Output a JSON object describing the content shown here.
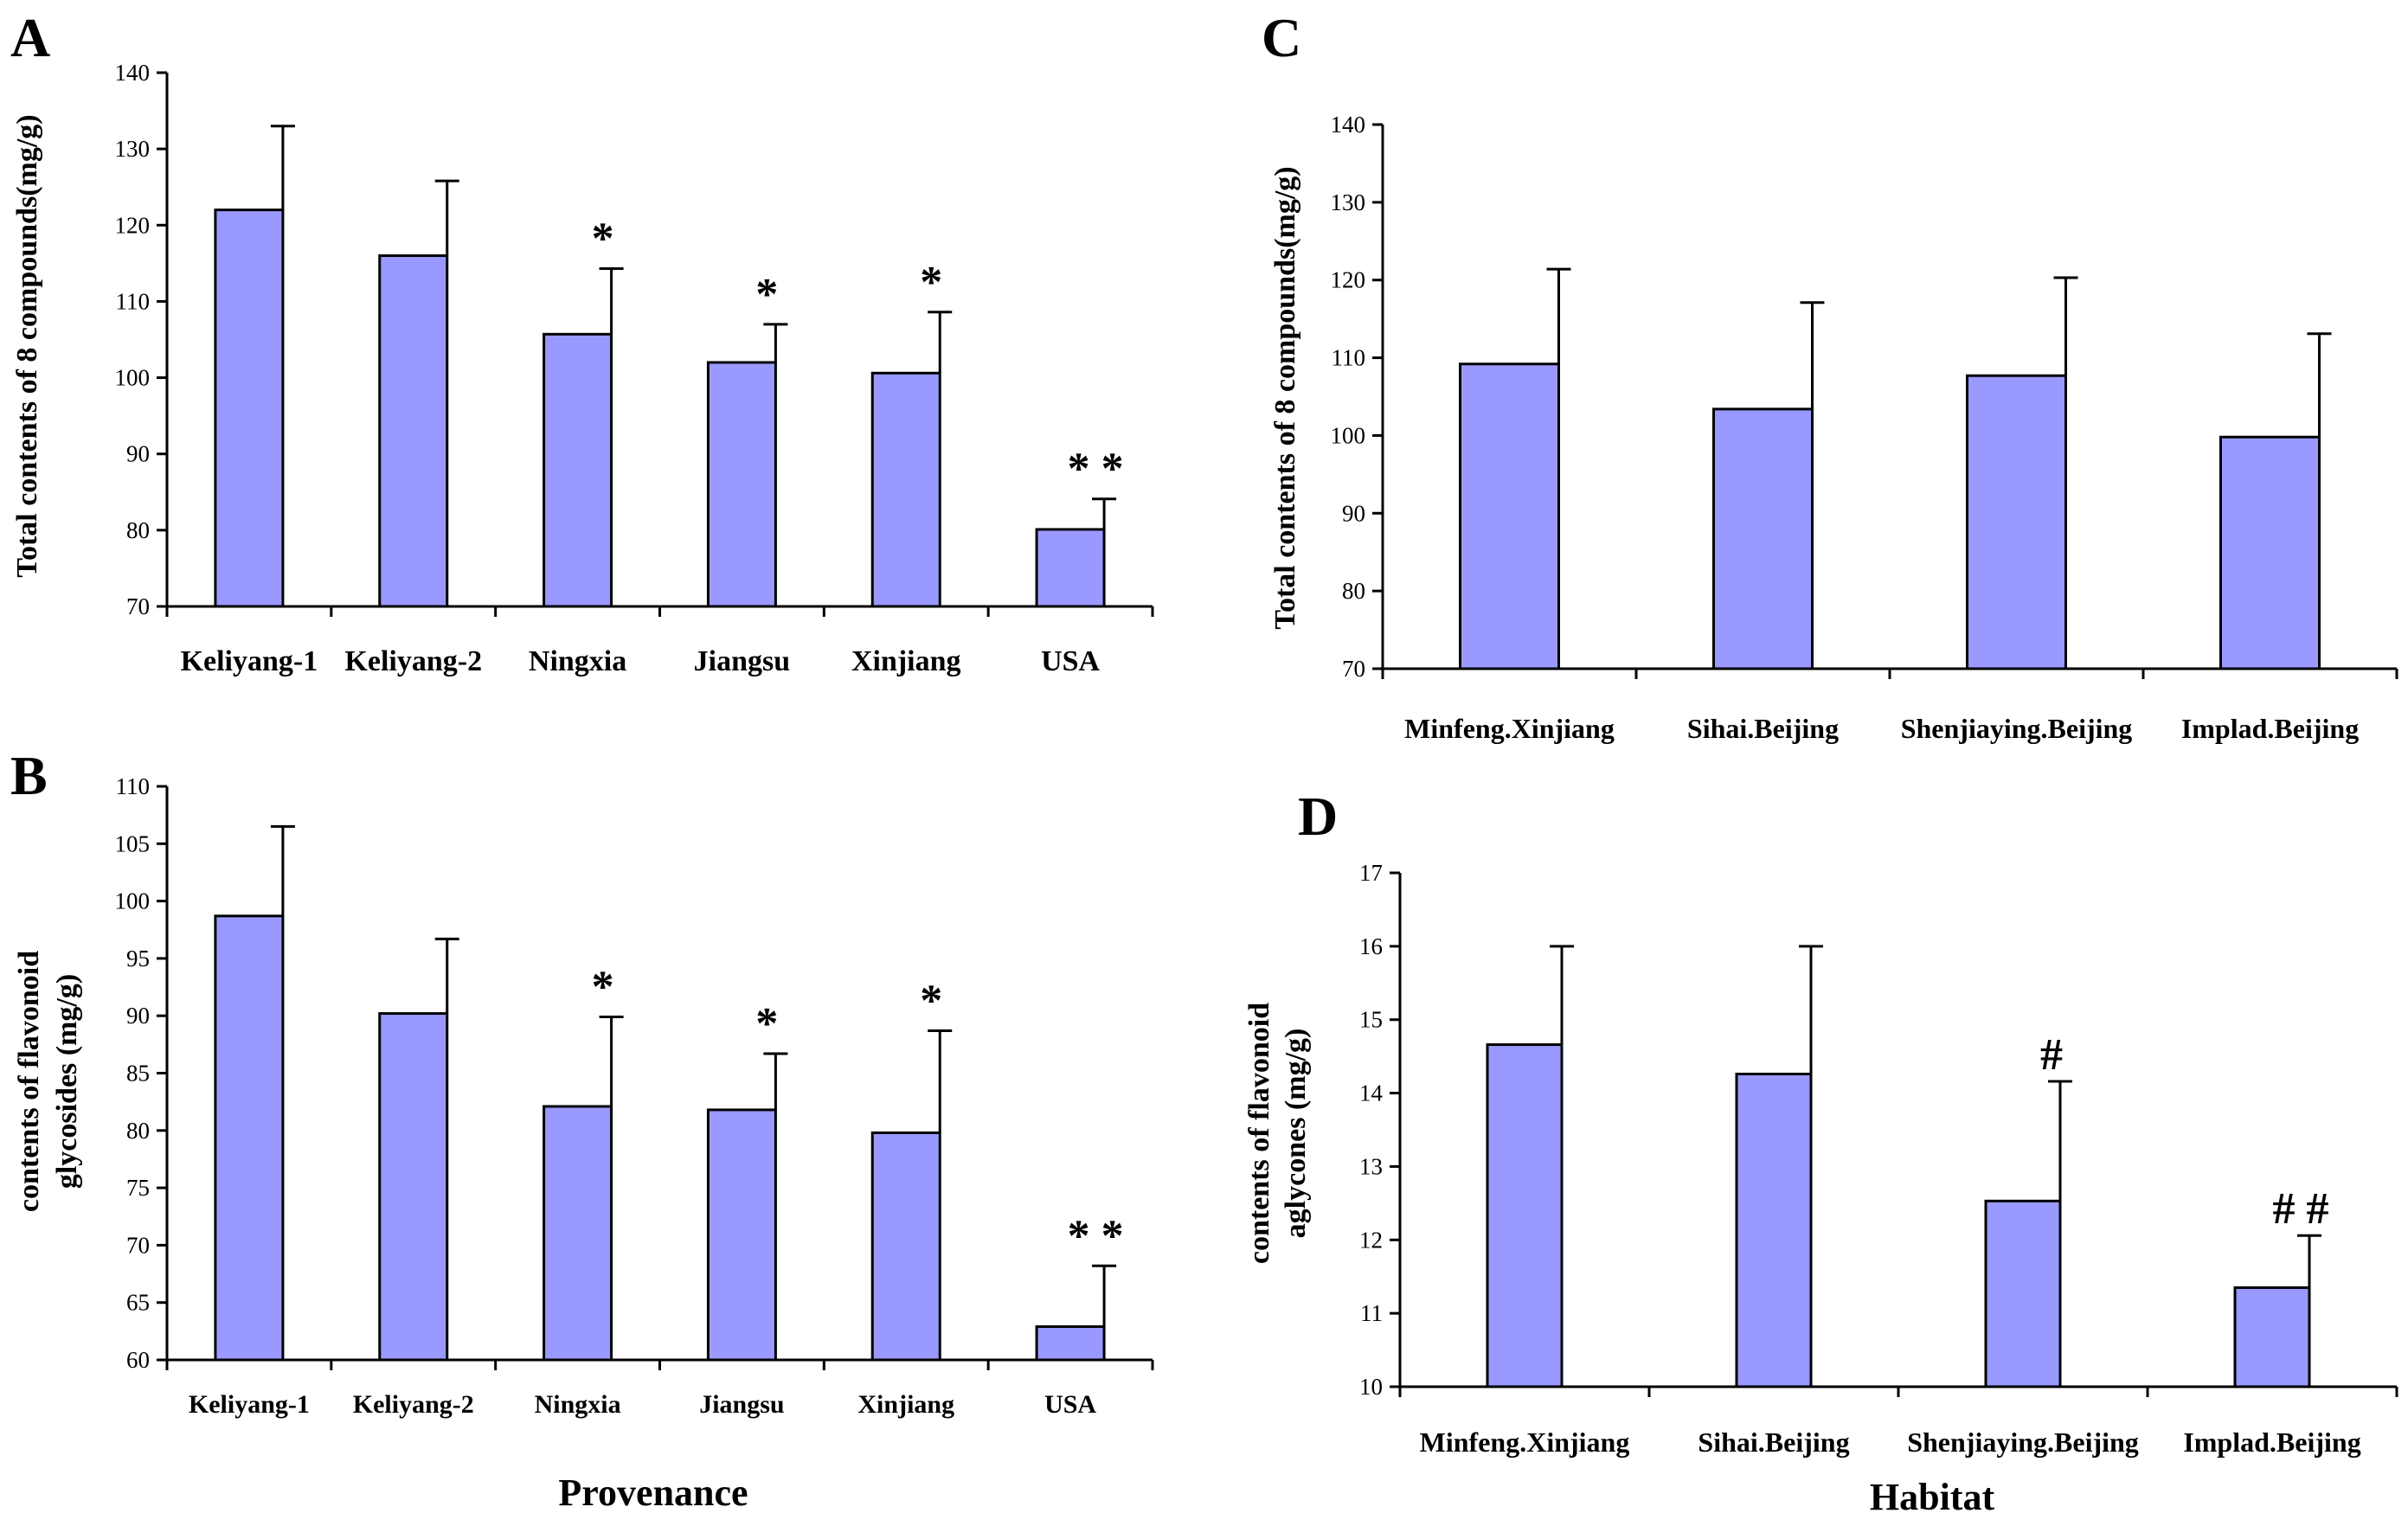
{
  "figure_labels": {
    "x_label_left": "Provenance",
    "x_label_right": "Habitat"
  },
  "colors": {
    "bar_fill": "#9999ff",
    "stroke": "#000000"
  },
  "chart_data": [
    {
      "panel": "A",
      "type": "bar",
      "categories": [
        "Keliyang-1",
        "Keliyang-2",
        "Ningxia",
        "Jiangsu",
        "Xinjiang",
        "USA"
      ],
      "values": [
        122,
        116,
        105.7,
        102,
        100.6,
        80.1
      ],
      "errors": [
        11,
        9.8,
        8.6,
        5,
        8,
        4
      ],
      "significance": [
        "",
        "",
        "*",
        "*",
        "*",
        "* *"
      ],
      "ylabel": "Total contents of 8 compounds(mg/g)",
      "xlabel": "",
      "ylim": [
        70,
        140
      ],
      "yticks": [
        70,
        80,
        90,
        100,
        110,
        120,
        130,
        140
      ]
    },
    {
      "panel": "B",
      "type": "bar",
      "categories": [
        "Keliyang-1",
        "Keliyang-2",
        "Ningxia",
        "Jiangsu",
        "Xinjiang",
        "USA"
      ],
      "values": [
        98.7,
        90.2,
        82.1,
        81.8,
        79.8,
        62.9
      ],
      "errors": [
        7.8,
        6.5,
        7.8,
        4.9,
        8.9,
        5.3
      ],
      "significance": [
        "",
        "",
        "*",
        "*",
        "*",
        "* *"
      ],
      "ylabel_line1": "contents of  flavonoid",
      "ylabel_line2": "glycosides (mg/g)",
      "xlabel": "Provenance",
      "ylim": [
        60,
        110
      ],
      "yticks": [
        60,
        65,
        70,
        75,
        80,
        85,
        90,
        95,
        100,
        105,
        110
      ]
    },
    {
      "panel": "C",
      "type": "bar",
      "categories": [
        "Minfeng.Xinjiang",
        "Sihai.Beijing",
        "Shenjiaying.Beijing",
        "Implad.Beijing"
      ],
      "values": [
        109.2,
        103.4,
        107.7,
        99.8
      ],
      "errors": [
        12.2,
        13.7,
        12.6,
        13.3
      ],
      "significance": [
        "",
        "",
        "",
        ""
      ],
      "ylabel": "Total contents of 8 compounds(mg/g)",
      "xlabel": "",
      "ylim": [
        70,
        140
      ],
      "yticks": [
        70,
        80,
        90,
        100,
        110,
        120,
        130,
        140
      ]
    },
    {
      "panel": "D",
      "type": "bar",
      "categories": [
        "Minfeng.Xinjiang",
        "Sihai.Beijing",
        "Shenjiaying.Beijing",
        "Implad.Beijing"
      ],
      "values": [
        14.66,
        14.26,
        12.53,
        11.35
      ],
      "errors": [
        1.34,
        1.74,
        1.63,
        0.71
      ],
      "significance": [
        "",
        "",
        "#",
        "# #"
      ],
      "ylabel_line1": "contents of  flavonoid",
      "ylabel_line2": "aglycones (mg/g)",
      "xlabel": "Habitat",
      "ylim": [
        10,
        17
      ],
      "yticks": [
        10,
        11,
        12,
        13,
        14,
        15,
        16,
        17
      ]
    }
  ]
}
